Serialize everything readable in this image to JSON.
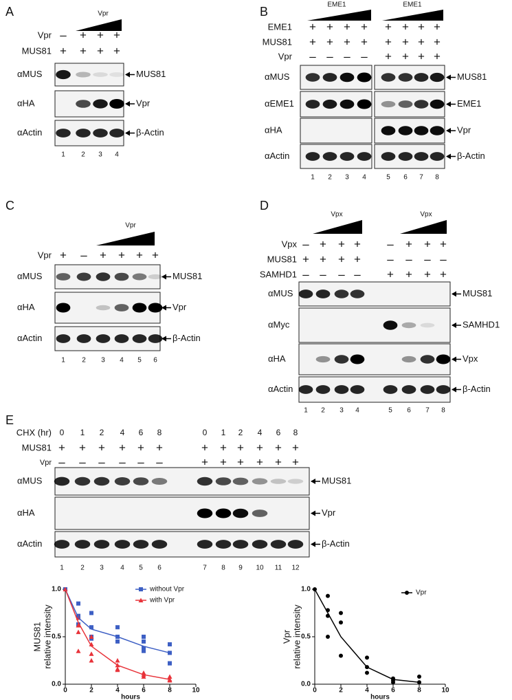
{
  "panels": [
    {
      "label": "A",
      "triangles": [
        "Vpr"
      ],
      "rows": [
        {
          "name": "Vpr",
          "signs": [
            "–",
            "+",
            "+",
            "+"
          ]
        },
        {
          "name": "MUS81",
          "signs": [
            "+",
            "+",
            "+",
            "+"
          ]
        }
      ],
      "blots": [
        {
          "antibody": "αMUS",
          "target": "MUS81"
        },
        {
          "antibody": "αHA",
          "target": "Vpr"
        },
        {
          "antibody": "αActin",
          "target": "β-Actin"
        }
      ],
      "lanes": [
        "1",
        "2",
        "3",
        "4"
      ]
    },
    {
      "label": "B",
      "triangles": [
        "EME1",
        "EME1"
      ],
      "rows": [
        {
          "name": "EME1",
          "signs": [
            "+",
            "+",
            "+",
            "+",
            "+",
            "+",
            "+",
            "+"
          ]
        },
        {
          "name": "MUS81",
          "signs": [
            "+",
            "+",
            "+",
            "+",
            "+",
            "+",
            "+",
            "+"
          ]
        },
        {
          "name": "Vpr",
          "signs": [
            "–",
            "–",
            "–",
            "–",
            "+",
            "+",
            "+",
            "+"
          ]
        }
      ],
      "blots": [
        {
          "antibody": "αMUS",
          "target": "MUS81"
        },
        {
          "antibody": "αEME1",
          "target": "EME1"
        },
        {
          "antibody": "αHA",
          "target": "Vpr"
        },
        {
          "antibody": "αActin",
          "target": "β-Actin"
        }
      ],
      "lanes": [
        "1",
        "2",
        "3",
        "4",
        "5",
        "6",
        "7",
        "8"
      ]
    },
    {
      "label": "C",
      "triangles": [
        "Vpr"
      ],
      "rows": [
        {
          "name": "Vpr",
          "signs": [
            "+",
            "–",
            "+",
            "+",
            "+",
            "+"
          ]
        }
      ],
      "blots": [
        {
          "antibody": "αMUS",
          "target": "MUS81"
        },
        {
          "antibody": "αHA",
          "target": "Vpr"
        },
        {
          "antibody": "αActin",
          "target": "β-Actin"
        }
      ],
      "lanes": [
        "1",
        "2",
        "3",
        "4",
        "5",
        "6"
      ]
    },
    {
      "label": "D",
      "triangles": [
        "Vpx",
        "Vpx"
      ],
      "rows": [
        {
          "name": "Vpx",
          "signs": [
            "–",
            "+",
            "+",
            "+",
            "–",
            "+",
            "+",
            "+"
          ]
        },
        {
          "name": "MUS81",
          "signs": [
            "+",
            "+",
            "+",
            "+",
            "–",
            "–",
            "–",
            "–"
          ]
        },
        {
          "name": "SAMHD1",
          "signs": [
            "–",
            "–",
            "–",
            "–",
            "+",
            "+",
            "+",
            "+"
          ]
        }
      ],
      "blots": [
        {
          "antibody": "αMUS",
          "target": "MUS81"
        },
        {
          "antibody": "αMyc",
          "target": "SAMHD1"
        },
        {
          "antibody": "αHA",
          "target": "Vpx"
        },
        {
          "antibody": "αActin",
          "target": "β-Actin"
        }
      ],
      "lanes": [
        "1",
        "2",
        "3",
        "4",
        "5",
        "6",
        "7",
        "8"
      ]
    },
    {
      "label": "E",
      "triangles": [],
      "rows": [
        {
          "name": "CHX (hr)",
          "signs": [
            "0",
            "1",
            "2",
            "4",
            "6",
            "8",
            "0",
            "1",
            "2",
            "4",
            "6",
            "8"
          ]
        },
        {
          "name": "MUS81",
          "signs": [
            "+",
            "+",
            "+",
            "+",
            "+",
            "+",
            "+",
            "+",
            "+",
            "+",
            "+",
            "+"
          ]
        },
        {
          "name": "Vpr",
          "signs": [
            "–",
            "–",
            "–",
            "–",
            "–",
            "–",
            "+",
            "+",
            "+",
            "+",
            "+",
            "+"
          ]
        }
      ],
      "blots": [
        {
          "antibody": "αMUS",
          "target": "MUS81"
        },
        {
          "antibody": "αHA",
          "target": "Vpr"
        },
        {
          "antibody": "αActin",
          "target": "β-Actin"
        }
      ],
      "lanes": [
        "1",
        "2",
        "3",
        "4",
        "5",
        "6",
        "7",
        "8",
        "9",
        "10",
        "11",
        "12"
      ]
    }
  ],
  "chart_data": [
    {
      "type": "scatter",
      "ylabel": [
        "MUS81",
        "relative intensity"
      ],
      "xlabel": "hours",
      "xlim": [
        0,
        10
      ],
      "xticks": [
        0,
        2,
        4,
        6,
        8,
        10
      ],
      "ylim": [
        0,
        1
      ],
      "yticks": [
        {
          "value": 0,
          "label": "0.0"
        },
        {
          "value": 0.5,
          "label": "0.5"
        },
        {
          "value": 1,
          "label": "1.0"
        }
      ],
      "series": [
        {
          "name": "without Vpr",
          "color": "#3d5fc4",
          "marker": "square",
          "x": [
            0,
            1,
            1,
            1,
            1,
            2,
            2,
            2,
            2,
            4,
            4,
            4,
            4,
            6,
            6,
            6,
            6,
            8,
            8,
            8,
            8
          ],
          "values": [
            1,
            0.85,
            0.72,
            0.7,
            0.63,
            0.75,
            0.6,
            0.5,
            0.48,
            0.6,
            0.5,
            0.5,
            0.45,
            0.5,
            0.45,
            0.38,
            0.35,
            0.42,
            0.33,
            0.22,
            0.22
          ]
        },
        {
          "name": "with Vpr",
          "color": "#e8333a",
          "marker": "triangle",
          "x": [
            0,
            1,
            1,
            1,
            1,
            2,
            2,
            2,
            2,
            4,
            4,
            4,
            4,
            6,
            6,
            6,
            8,
            8,
            8
          ],
          "values": [
            1,
            0.7,
            0.62,
            0.55,
            0.35,
            0.5,
            0.42,
            0.32,
            0.25,
            0.25,
            0.2,
            0.16,
            0.15,
            0.12,
            0.1,
            0.08,
            0.08,
            0.05,
            0.04
          ]
        },
        {
          "color": "#3d5fc4",
          "line": true,
          "x": [
            0,
            1,
            2,
            4,
            6,
            8
          ],
          "values": [
            1,
            0.7,
            0.58,
            0.5,
            0.4,
            0.33
          ]
        },
        {
          "color": "#e8333a",
          "line": true,
          "x": [
            0,
            1,
            2,
            4,
            6,
            8
          ],
          "values": [
            1,
            0.65,
            0.4,
            0.2,
            0.1,
            0.05
          ]
        }
      ]
    },
    {
      "type": "scatter",
      "ylabel": [
        "Vpr",
        "relative intensity"
      ],
      "xlabel": "hours",
      "xlim": [
        0,
        10
      ],
      "xticks": [
        0,
        2,
        4,
        6,
        8,
        10
      ],
      "ylim": [
        0,
        1
      ],
      "yticks": [
        {
          "value": 0,
          "label": "0.0"
        },
        {
          "value": 0.5,
          "label": "0.5"
        },
        {
          "value": 1,
          "label": "1.0"
        }
      ],
      "series": [
        {
          "name": "Vpr",
          "color": "#000000",
          "marker": "circle",
          "x": [
            0,
            1,
            1,
            1,
            1,
            2,
            2,
            2,
            4,
            4,
            4,
            6,
            6,
            6,
            8,
            8
          ],
          "values": [
            1,
            0.93,
            0.78,
            0.72,
            0.5,
            0.75,
            0.65,
            0.3,
            0.28,
            0.18,
            0.12,
            0.06,
            0.04,
            0.02,
            0.08,
            0.02
          ]
        },
        {
          "color": "#000000",
          "line": true,
          "x": [
            0,
            1,
            2,
            4,
            6,
            8
          ],
          "values": [
            1,
            0.75,
            0.5,
            0.18,
            0.05,
            0.02
          ]
        }
      ]
    }
  ]
}
